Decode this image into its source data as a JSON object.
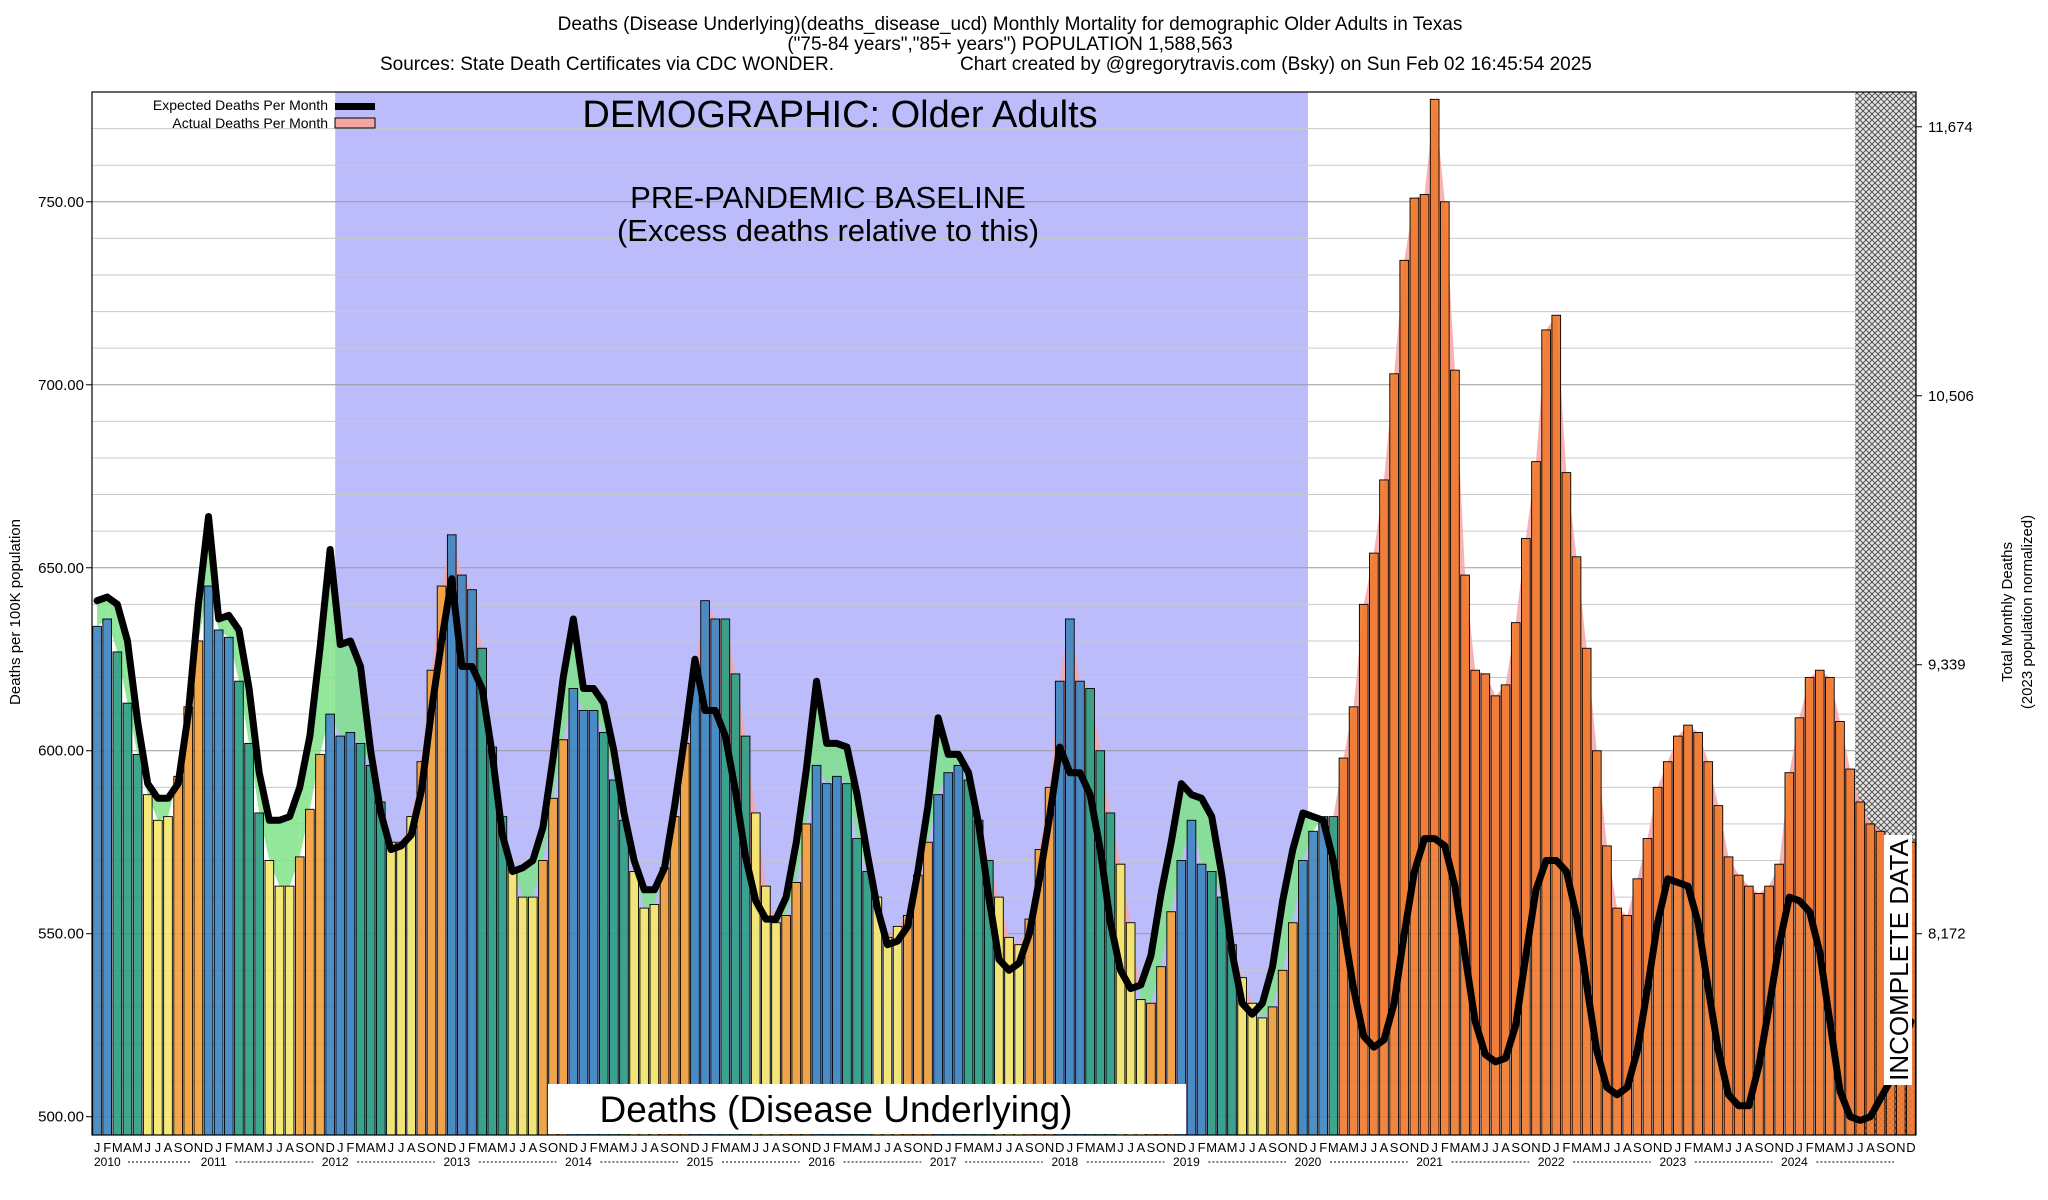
{
  "title": {
    "line1": "Deaths (Disease Underlying)(deaths_disease_ucd) Monthly Mortality for demographic Older Adults in Texas",
    "line2": "(\"75-84 years\",\"85+ years\") POPULATION 1,588,563",
    "line3_left": "Sources: State Death Certificates via CDC WONDER.",
    "line3_right": "Chart created by @gregorytravis.com (Bsky) on Sun Feb 02 16:45:54 2025"
  },
  "banner": {
    "demographic": "DEMOGRAPHIC: Older Adults",
    "baseline_1": "PRE-PANDEMIC BASELINE",
    "baseline_2": "(Excess deaths relative to this)",
    "footer": "Deaths (Disease Underlying)",
    "incomplete": "INCOMPLETE DATA"
  },
  "legend": {
    "expected": "Expected Deaths Per Month",
    "actual": "Actual Deaths Per Month"
  },
  "colors": {
    "baseline_region": "#bcbcfb",
    "expected_line": "#000000",
    "actual_fill": "#f4a6a6",
    "deficit_fill": "#7fe38a",
    "bar_winter": "#3f87c0",
    "bar_summer": "#f4e86a",
    "bar_fall": "#f2a23c",
    "bar_spring": "#2e9e82",
    "bar_excess": "#f07a2e"
  },
  "chart_data": {
    "type": "bar",
    "title": "Deaths (Disease Underlying)(deaths_disease_ucd) Monthly Mortality for demographic Older Adults in Texas",
    "xlabel": "",
    "ylabel": "Deaths per 100K population",
    "y2label": "Total Monthly Deaths",
    "y2label_sub": "(2023 population normalized)",
    "ylim": [
      495,
      780
    ],
    "y_ticks": [
      "500.00",
      "550.00",
      "600.00",
      "650.00",
      "700.00",
      "750.00"
    ],
    "y2_ticks": [
      {
        "label": "8,172",
        "at_y": 550
      },
      {
        "label": "9,339",
        "at_y": 623.5
      },
      {
        "label": "10,506",
        "at_y": 697
      },
      {
        "label": "11,674",
        "at_y": 770.5
      }
    ],
    "months": [
      "J",
      "F",
      "M",
      "A",
      "M",
      "J",
      "J",
      "A",
      "S",
      "O",
      "N",
      "D"
    ],
    "years": [
      "2010",
      "2011",
      "2012",
      "2013",
      "2014",
      "2015",
      "2016",
      "2017",
      "2018",
      "2019",
      "2020",
      "2021",
      "2022",
      "2023",
      "2024"
    ],
    "baseline_period": {
      "start": "2012-01",
      "end": "2019-12"
    },
    "incomplete_from": "2024-07",
    "series": [
      {
        "name": "Actual Deaths Per Month",
        "start": "2010-01",
        "values": [
          634,
          636,
          627,
          613,
          599,
          588,
          581,
          582,
          593,
          612,
          630,
          645,
          633,
          631,
          619,
          602,
          583,
          570,
          563,
          563,
          571,
          584,
          599,
          610,
          604,
          605,
          602,
          596,
          586,
          575,
          575,
          582,
          597,
          622,
          645,
          659,
          648,
          644,
          628,
          601,
          582,
          568,
          560,
          560,
          570,
          587,
          603,
          617,
          611,
          611,
          605,
          592,
          581,
          567,
          557,
          558,
          568,
          582,
          602,
          622,
          641,
          636,
          636,
          621,
          604,
          583,
          563,
          553,
          555,
          564,
          580,
          596,
          591,
          593,
          591,
          576,
          567,
          560,
          549,
          552,
          555,
          566,
          575,
          588,
          594,
          596,
          592,
          581,
          570,
          560,
          549,
          547,
          554,
          573,
          590,
          619,
          636,
          619,
          617,
          600,
          583,
          569,
          553,
          532,
          531,
          541,
          556,
          570,
          581,
          569,
          567,
          560,
          547,
          538,
          531,
          527,
          530,
          540,
          553,
          570,
          578,
          582,
          582,
          598,
          612,
          640,
          654,
          674,
          703,
          734,
          751,
          752,
          778,
          750,
          704,
          648,
          622,
          621,
          615,
          618,
          635,
          658,
          679,
          715,
          719,
          676,
          653,
          628,
          600,
          574,
          557,
          555,
          565,
          576,
          590,
          597,
          604,
          607,
          605,
          597,
          585,
          571,
          566,
          563,
          561,
          563,
          569,
          594,
          609,
          620,
          622,
          620,
          608,
          595,
          586,
          580,
          578,
          576,
          576,
          575
        ]
      },
      {
        "name": "Expected Deaths Per Month",
        "start": "2010-01",
        "values": [
          641,
          642,
          640,
          630,
          608,
          591,
          587,
          587,
          591,
          610,
          640,
          664,
          636,
          637,
          633,
          617,
          594,
          581,
          581,
          582,
          590,
          604,
          628,
          655,
          629,
          630,
          623,
          600,
          583,
          573,
          574,
          577,
          589,
          611,
          630,
          647,
          623,
          623,
          617,
          599,
          577,
          567,
          568,
          570,
          579,
          598,
          620,
          636,
          617,
          617,
          613,
          600,
          583,
          570,
          562,
          562,
          568,
          585,
          604,
          625,
          611,
          611,
          604,
          589,
          571,
          559,
          554,
          554,
          560,
          575,
          595,
          619,
          602,
          602,
          601,
          588,
          572,
          557,
          547,
          548,
          552,
          567,
          585,
          609,
          599,
          599,
          594,
          580,
          560,
          543,
          540,
          542,
          550,
          565,
          582,
          601,
          594,
          594,
          588,
          573,
          553,
          540,
          535,
          536,
          544,
          561,
          575,
          591,
          588,
          587,
          582,
          566,
          545,
          531,
          528,
          531,
          541,
          559,
          573,
          583,
          582,
          581,
          570,
          552,
          535,
          522,
          519,
          521,
          531,
          550,
          567,
          576,
          576,
          574,
          563,
          544,
          526,
          517,
          515,
          516,
          525,
          544,
          562,
          570,
          570,
          567,
          555,
          536,
          518,
          508,
          506,
          508,
          518,
          535,
          553,
          565,
          564,
          563,
          553,
          535,
          518,
          506,
          503,
          503,
          514,
          530,
          547,
          560,
          559,
          556,
          545,
          526,
          507,
          500,
          499,
          500,
          505,
          510,
          518,
          526
        ]
      }
    ]
  }
}
